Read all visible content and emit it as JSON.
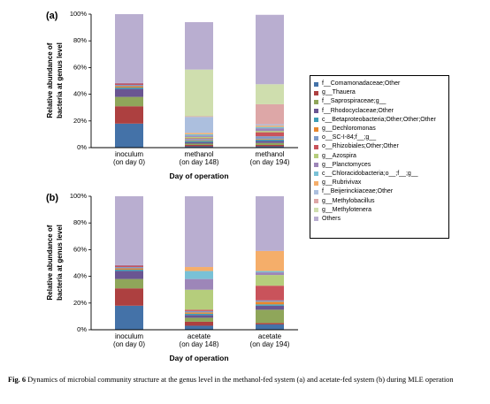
{
  "legend": {
    "items": [
      {
        "label": "f__Comamonadaceae;Other",
        "color": "#4472a8"
      },
      {
        "label": "g__Thauera",
        "color": "#ad4040"
      },
      {
        "label": "f__Saprospiraceae;g__",
        "color": "#8fa65a"
      },
      {
        "label": "f__Rhodocyclaceae;Other",
        "color": "#6a5592"
      },
      {
        "label": "c__Betaproteobacteria;Other;Other;Other",
        "color": "#3d9db5"
      },
      {
        "label": "g__Dechloromonas",
        "color": "#e8862d"
      },
      {
        "label": "o__SC-I-84;f__;g__",
        "color": "#7e9ac8"
      },
      {
        "label": "o__Rhizobiales;Other;Other",
        "color": "#c9535b"
      },
      {
        "label": "g__Azospira",
        "color": "#b5cd7c"
      },
      {
        "label": "g__Planctomyces",
        "color": "#9d86b8"
      },
      {
        "label": "c__Chloracidobacteria;o__;f__;g__",
        "color": "#79c1d6"
      },
      {
        "label": "g__Rubrivivax",
        "color": "#f5ae6a"
      },
      {
        "label": "f__Beijerinckiaceae;Other",
        "color": "#acbfde"
      },
      {
        "label": "g__Methylobacillus",
        "color": "#dda7a7"
      },
      {
        "label": "g__Methylotenera",
        "color": "#cfdeae"
      },
      {
        "label": "Others",
        "color": "#b9aed0"
      }
    ]
  },
  "chart_data": [
    {
      "type": "bar",
      "stacked": true,
      "panel_label": "(a)",
      "xlabel": "Day of operation",
      "ylabel_lines": [
        "Relative abundance of",
        "bacteria at genus level"
      ],
      "ylim": [
        0,
        100
      ],
      "yticks": [
        "0%",
        "20%",
        "40%",
        "60%",
        "80%",
        "100%"
      ],
      "categories": [
        {
          "line1": "inoculum",
          "line2": "(on day 0)"
        },
        {
          "line1": "methanol",
          "line2": "(on day 148)"
        },
        {
          "line1": "methanol",
          "line2": "(on day 194)"
        }
      ],
      "series": [
        {
          "name": "f__Comamonadaceae;Other",
          "values": [
            18,
            1,
            1
          ]
        },
        {
          "name": "g__Thauera",
          "values": [
            13,
            1,
            1
          ]
        },
        {
          "name": "f__Saprospiraceae;g__",
          "values": [
            7,
            1,
            1.5
          ]
        },
        {
          "name": "f__Rhodocyclaceae;Other",
          "values": [
            6,
            1,
            1.5
          ]
        },
        {
          "name": "c__Betaproteobacteria;Other;Other;Other",
          "values": [
            1,
            1,
            1
          ]
        },
        {
          "name": "g__Dechloromonas",
          "values": [
            1,
            0.5,
            0.5
          ]
        },
        {
          "name": "o__SC-I-84;f__;g__",
          "values": [
            1,
            1,
            2
          ]
        },
        {
          "name": "o__Rhizobiales;Other;Other",
          "values": [
            1,
            0.5,
            3
          ]
        },
        {
          "name": "g__Azospira",
          "values": [
            0,
            1,
            1
          ]
        },
        {
          "name": "g__Planctomyces",
          "values": [
            0.5,
            1,
            2
          ]
        },
        {
          "name": "c__Chloracidobacteria;o__;f__;g__",
          "values": [
            0,
            1,
            1
          ]
        },
        {
          "name": "g__Rubrivivax",
          "values": [
            0,
            1,
            1
          ]
        },
        {
          "name": "f__Beijerinckiaceae;Other",
          "values": [
            0,
            12,
            1
          ]
        },
        {
          "name": "g__Methylobacillus",
          "values": [
            0,
            0.5,
            15
          ]
        },
        {
          "name": "g__Methylotenera",
          "values": [
            0,
            35,
            15
          ]
        },
        {
          "name": "Others",
          "values": [
            51.5,
            35.5,
            52
          ]
        }
      ]
    },
    {
      "type": "bar",
      "stacked": true,
      "panel_label": "(b)",
      "xlabel": "Day of operation",
      "ylabel_lines": [
        "Relative abundance of",
        "bacteria at genus level"
      ],
      "ylim": [
        0,
        100
      ],
      "yticks": [
        "0%",
        "20%",
        "40%",
        "60%",
        "80%",
        "100%"
      ],
      "categories": [
        {
          "line1": "inoculum",
          "line2": "(on day 0)"
        },
        {
          "line1": "acetate",
          "line2": "(on day 148)"
        },
        {
          "line1": "acetate",
          "line2": "(on day 194)"
        }
      ],
      "series": [
        {
          "name": "f__Comamonadaceae;Other",
          "values": [
            18,
            3,
            4
          ]
        },
        {
          "name": "g__Thauera",
          "values": [
            13,
            3,
            1
          ]
        },
        {
          "name": "f__Saprospiraceae;g__",
          "values": [
            7,
            3,
            10
          ]
        },
        {
          "name": "f__Rhodocyclaceae;Other",
          "values": [
            6,
            2,
            3
          ]
        },
        {
          "name": "c__Betaproteobacteria;Other;Other;Other",
          "values": [
            1,
            1,
            1
          ]
        },
        {
          "name": "g__Dechloromonas",
          "values": [
            1,
            1,
            2
          ]
        },
        {
          "name": "o__SC-I-84;f__;g__",
          "values": [
            1,
            1,
            1
          ]
        },
        {
          "name": "o__Rhizobiales;Other;Other",
          "values": [
            1,
            1,
            11
          ]
        },
        {
          "name": "g__Azospira",
          "values": [
            0,
            15,
            8
          ]
        },
        {
          "name": "g__Planctomyces",
          "values": [
            0.5,
            8,
            2
          ]
        },
        {
          "name": "c__Chloracidobacteria;o__;f__;g__",
          "values": [
            0,
            6,
            1
          ]
        },
        {
          "name": "g__Rubrivivax",
          "values": [
            0,
            3,
            15
          ]
        },
        {
          "name": "f__Beijerinckiaceae;Other",
          "values": [
            0,
            0,
            0
          ]
        },
        {
          "name": "g__Methylobacillus",
          "values": [
            0,
            0,
            0
          ]
        },
        {
          "name": "g__Methylotenera",
          "values": [
            0,
            0,
            0
          ]
        },
        {
          "name": "Others",
          "values": [
            51.5,
            53,
            41
          ]
        }
      ]
    }
  ],
  "caption": {
    "label": "Fig. 6",
    "text": "Dynamics of microbial community structure at the genus level in the methanol-fed system (a) and acetate-fed system (b) during MLE operation"
  }
}
